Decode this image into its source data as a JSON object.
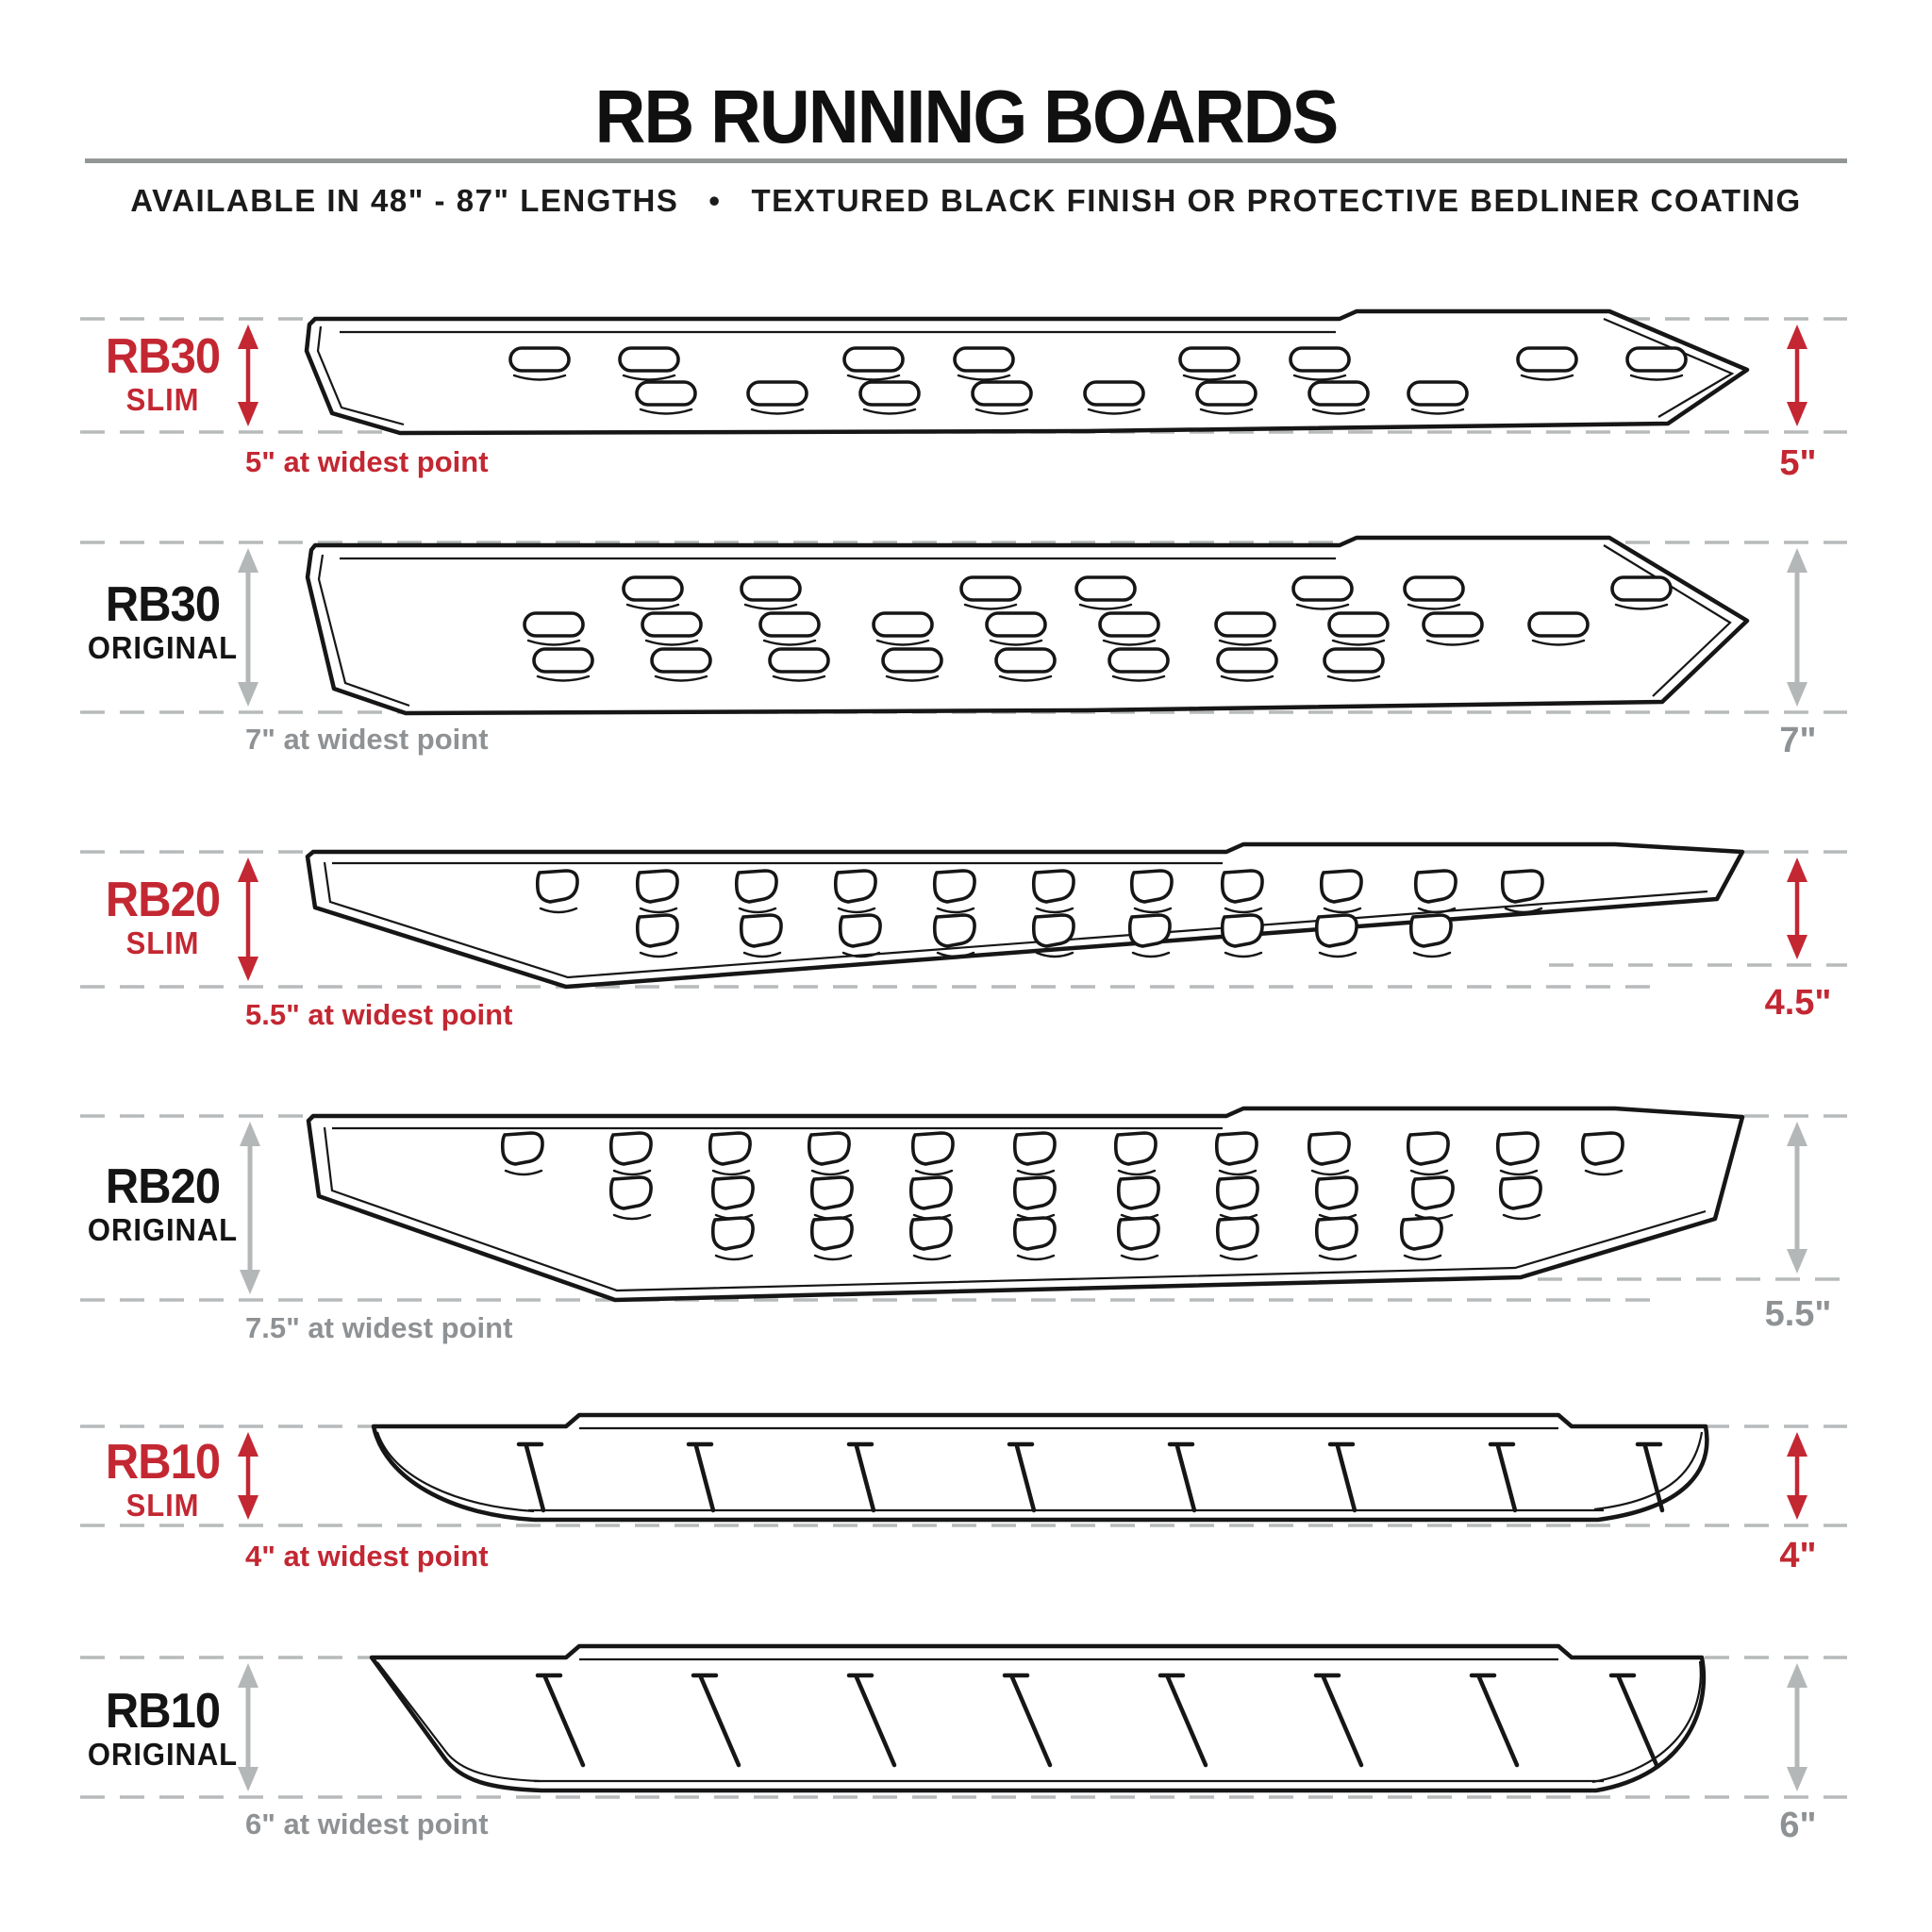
{
  "header": {
    "title": "RB RUNNING BOARDS",
    "subtitle": "AVAILABLE IN 48\" - 87\" LENGTHS   •   TEXTURED BLACK FINISH OR PROTECTIVE BEDLINER COATING"
  },
  "colors": {
    "accent_red": "#c32732",
    "muted_gray": "#8f9294",
    "dash_gray": "#b7babb",
    "line_black": "#161616"
  },
  "rows": [
    {
      "model": "RB30",
      "variant": "SLIM",
      "style": "slim",
      "left_note": "5\" at widest point",
      "right_note": "5\""
    },
    {
      "model": "RB30",
      "variant": "ORIGINAL",
      "style": "original",
      "left_note": "7\" at widest point",
      "right_note": "7\""
    },
    {
      "model": "RB20",
      "variant": "SLIM",
      "style": "slim",
      "left_note": "5.5\" at widest point",
      "right_note": "4.5\""
    },
    {
      "model": "RB20",
      "variant": "ORIGINAL",
      "style": "original",
      "left_note": "7.5\" at widest point",
      "right_note": "5.5\""
    },
    {
      "model": "RB10",
      "variant": "SLIM",
      "style": "slim",
      "left_note": "4\" at widest point",
      "right_note": "4\""
    },
    {
      "model": "RB10",
      "variant": "ORIGINAL",
      "style": "original",
      "left_note": "6\" at widest point",
      "right_note": "6\""
    }
  ]
}
